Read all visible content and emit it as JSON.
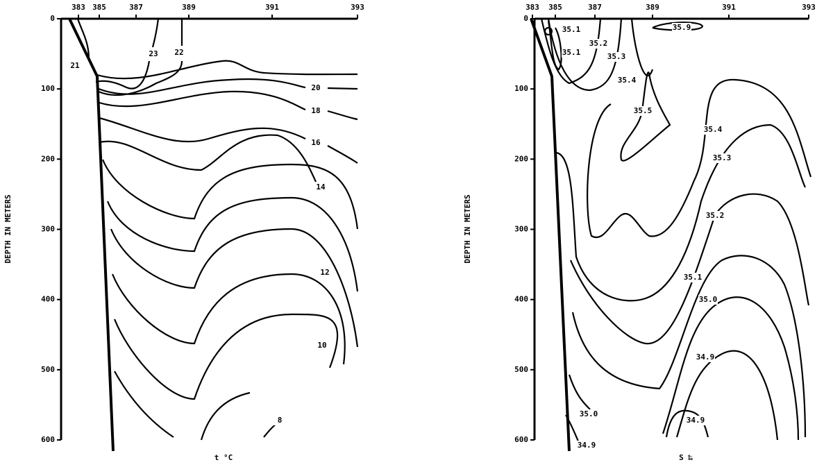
{
  "chart_data": [
    {
      "type": "contour",
      "x_label": "t °C",
      "y_label": "DEPTH IN METERS",
      "stations": [
        "383",
        "385",
        "387",
        "389",
        "391",
        "393"
      ],
      "ylim": [
        0,
        600
      ],
      "yticks": [
        0,
        100,
        200,
        300,
        400,
        500,
        600
      ],
      "contour_labels": [
        21,
        23,
        22,
        20,
        18,
        16,
        14,
        12,
        10,
        8
      ],
      "color": "#000000"
    },
    {
      "type": "contour",
      "x_label": "S ‰",
      "y_label": "DEPTH IN METERS",
      "stations": [
        "383",
        "385",
        "387",
        "389",
        "391",
        "393"
      ],
      "ylim": [
        0,
        600
      ],
      "yticks": [
        0,
        100,
        200,
        300,
        400,
        500,
        600
      ],
      "contour_labels": [
        35.1,
        35.9,
        35.1,
        35.2,
        35.3,
        35.4,
        35.5,
        35.4,
        35.3,
        35.2,
        35.1,
        {
          "value": 35.0,
          "label": "35.0"
        },
        34.9,
        {
          "value": 35.0,
          "label": "35.0"
        },
        34.9,
        34.9
      ],
      "color": "#000000"
    }
  ]
}
